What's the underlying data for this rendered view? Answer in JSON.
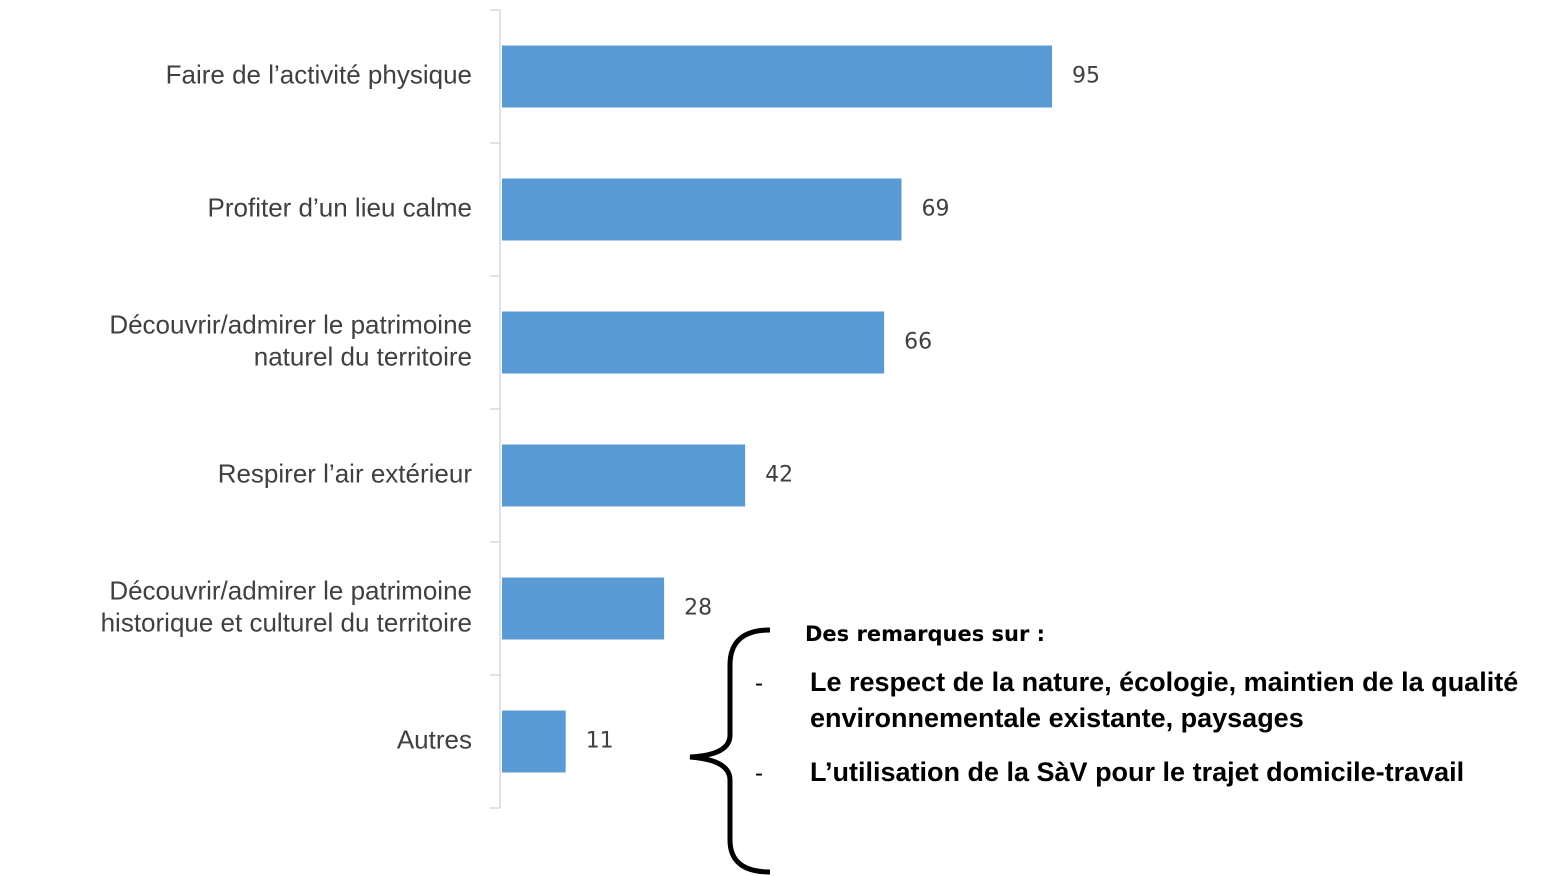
{
  "chart_data": {
    "type": "barh",
    "categories": [
      "Faire de l’activité physique",
      "Profiter d’un lieu calme",
      "Découvrir/admirer le patrimoine\nnaturel du territoire",
      "Respirer l’air extérieur",
      "Découvrir/admirer le patrimoine\nhistorique et culturel du territoire",
      "Autres"
    ],
    "values": [
      95,
      69,
      66,
      42,
      28,
      11
    ],
    "color": "#5b9bd5",
    "xlim": [
      0,
      100
    ],
    "annotation": {
      "title": "Des remarques sur :",
      "items": [
        "Le respect de la nature, écologie, maintien de la qualité environnementale existante, paysages",
        "L’utilisation de la SàV pour le trajet domicile-travail"
      ]
    }
  }
}
